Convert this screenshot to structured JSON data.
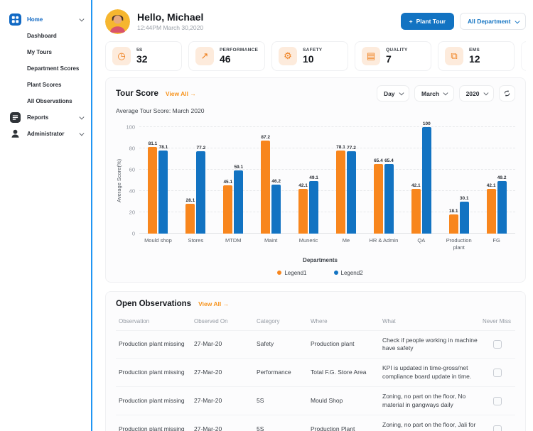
{
  "sidebar": {
    "accent_color": "#2196F3",
    "home": {
      "label": "Home"
    },
    "sub_items": [
      "Dashboard",
      "My Tours",
      "Department Scores",
      "Plant Scores",
      "All Observations"
    ],
    "groups": [
      {
        "label": "Reports"
      },
      {
        "label": "Administrator"
      }
    ]
  },
  "header": {
    "greeting": "Hello, Michael",
    "timestamp": "12:44PM March 30,2020",
    "plant_tour": {
      "plus": "+",
      "label": "Plant Tour"
    },
    "department_filter": "All Department"
  },
  "stat_cards": [
    {
      "label": "5S",
      "value": "32",
      "icon": "clock-icon",
      "glyph": "◷"
    },
    {
      "label": "PERFORMANCE",
      "value": "46",
      "icon": "line-chart-icon",
      "glyph": "↗"
    },
    {
      "label": "SAFETY",
      "value": "10",
      "icon": "gear-icon",
      "glyph": "⚙"
    },
    {
      "label": "QUALITY",
      "value": "7",
      "icon": "certificate-icon",
      "glyph": "▤"
    },
    {
      "label": "EMS",
      "value": "12",
      "icon": "copy-icon",
      "glyph": "⧉"
    }
  ],
  "tour_score": {
    "title": "Tour Score",
    "view_all": "View All →",
    "subtitle": "Average Tour Score: March 2020",
    "filters": {
      "day": "Day",
      "month": "March",
      "year": "2020"
    }
  },
  "chart_data": {
    "type": "bar",
    "categories": [
      "Mould shop",
      "Stores",
      "MTDM",
      "Maint",
      "Muneric",
      "Me",
      "HR & Admin",
      "QA",
      "Production plant",
      "FG"
    ],
    "series": [
      {
        "name": "Legend1",
        "color": "#F8861D",
        "values": [
          81.1,
          28.1,
          45.1,
          87.2,
          42.1,
          78.1,
          65.4,
          42.1,
          18.1,
          42.1
        ]
      },
      {
        "name": "Legend2",
        "color": "#1273C2",
        "values": [
          78.1,
          77.2,
          59.1,
          46.2,
          49.1,
          77.2,
          65.4,
          100,
          30.1,
          49.2
        ]
      }
    ],
    "xlabel": "Departments",
    "ylabel": "Average Score(%)",
    "ylim": [
      0,
      100
    ],
    "yticks": [
      0,
      20,
      40,
      60,
      80,
      100
    ],
    "grid": "dashed-horizontal",
    "legend_position": "bottom"
  },
  "observations": {
    "title": "Open Observations",
    "view_all": "View All →",
    "columns": [
      "Observation",
      "Observed On",
      "Category",
      "Where",
      "What",
      "Never Miss"
    ],
    "rows": [
      {
        "observation": "Production plant missing",
        "observed_on": "27-Mar-20",
        "category": "Safety",
        "where": "Production plant",
        "what": "Check if people working in machine have safety"
      },
      {
        "observation": "Production plant missing",
        "observed_on": "27-Mar-20",
        "category": "Performance",
        "where": "Total F.G. Store Area",
        "what": "KPI is updated in time-gross/net compliance board update in time."
      },
      {
        "observation": "Production plant missing",
        "observed_on": "27-Mar-20",
        "category": "5S",
        "where": "Mould Shop",
        "what": "Zoning, no part on the floor, No material in gangways daily"
      },
      {
        "observation": "Production plant missing",
        "observed_on": "27-Mar-20",
        "category": "5S",
        "where": "Production Plant",
        "what": "Zoning, no part on the floor, Jali for NOK parts"
      }
    ]
  }
}
